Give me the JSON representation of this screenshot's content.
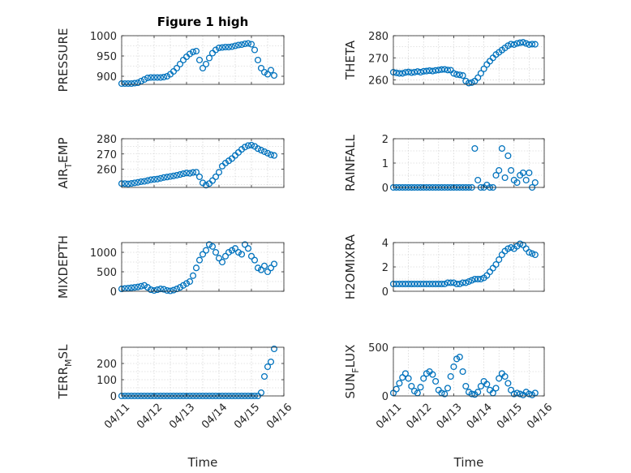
{
  "figure": {
    "title": "Figure 1 high",
    "marker_color": "#0072BD"
  },
  "chart_data": [
    {
      "id": "pressure",
      "type": "scatter",
      "title": "Figure 1 high",
      "ylabel": "PRESSURE",
      "ylabel_sub": [],
      "xlabel": "Time",
      "xlabel_visible": false,
      "xlim": [
        0,
        5
      ],
      "ylim": [
        880,
        1000
      ],
      "yticks": [
        900,
        950,
        1000
      ],
      "xticks": [
        0,
        1,
        2,
        3,
        4,
        5
      ],
      "xtick_labels": [
        "04/11",
        "04/12",
        "04/13",
        "04/14",
        "04/15",
        "04/16"
      ],
      "grid": true,
      "x": [
        0.0,
        0.1,
        0.2,
        0.3,
        0.4,
        0.5,
        0.6,
        0.7,
        0.8,
        0.9,
        1.0,
        1.1,
        1.2,
        1.3,
        1.4,
        1.5,
        1.6,
        1.7,
        1.8,
        1.9,
        2.0,
        2.1,
        2.2,
        2.3,
        2.4,
        2.5,
        2.6,
        2.7,
        2.8,
        2.9,
        3.0,
        3.1,
        3.2,
        3.3,
        3.4,
        3.5,
        3.6,
        3.7,
        3.8,
        3.9,
        4.0,
        4.1,
        4.2,
        4.3,
        4.4,
        4.5,
        4.6,
        4.7
      ],
      "y": [
        882,
        882,
        882,
        882,
        883,
        884,
        888,
        892,
        896,
        897,
        897,
        897,
        897,
        898,
        900,
        905,
        912,
        920,
        930,
        940,
        948,
        955,
        960,
        962,
        940,
        920,
        930,
        945,
        957,
        965,
        970,
        971,
        972,
        972,
        973,
        975,
        977,
        978,
        980,
        981,
        979,
        965,
        940,
        920,
        910,
        905,
        915,
        902
      ]
    },
    {
      "id": "theta",
      "type": "scatter",
      "ylabel": "THETA",
      "ylabel_sub": [],
      "xlabel": "Time",
      "xlabel_visible": false,
      "xlim": [
        0,
        5
      ],
      "ylim": [
        258,
        280
      ],
      "yticks": [
        260,
        270,
        280
      ],
      "xticks": [
        0,
        1,
        2,
        3,
        4,
        5
      ],
      "xtick_labels": [
        "04/11",
        "04/12",
        "04/13",
        "04/14",
        "04/15",
        "04/16"
      ],
      "grid": true,
      "x": [
        0.0,
        0.1,
        0.2,
        0.3,
        0.4,
        0.5,
        0.6,
        0.7,
        0.8,
        0.9,
        1.0,
        1.1,
        1.2,
        1.3,
        1.4,
        1.5,
        1.6,
        1.7,
        1.8,
        1.9,
        2.0,
        2.1,
        2.2,
        2.3,
        2.4,
        2.5,
        2.6,
        2.7,
        2.8,
        2.9,
        3.0,
        3.1,
        3.2,
        3.3,
        3.4,
        3.5,
        3.6,
        3.7,
        3.8,
        3.9,
        4.0,
        4.1,
        4.2,
        4.3,
        4.4,
        4.5,
        4.6,
        4.7
      ],
      "y": [
        263.5,
        263.2,
        263.0,
        263.0,
        263.4,
        263.6,
        263.3,
        263.5,
        263.8,
        263.5,
        263.9,
        264.0,
        264.2,
        264.0,
        264.3,
        264.5,
        264.7,
        264.8,
        264.5,
        264.4,
        263.0,
        262.5,
        262.3,
        262.0,
        259.5,
        258.6,
        258.8,
        259.5,
        261.0,
        263.0,
        265.0,
        267.0,
        268.5,
        270.0,
        271.5,
        272.5,
        273.5,
        274.5,
        275.5,
        276.2,
        276.0,
        276.5,
        276.8,
        277.0,
        276.5,
        276.0,
        276.2,
        276.1
      ]
    },
    {
      "id": "air_temp",
      "type": "scatter",
      "ylabel": "AIR",
      "ylabel_sub": [
        "T",
        "EMP"
      ],
      "xlabel": "Time",
      "xlabel_visible": false,
      "xlim": [
        0,
        5
      ],
      "ylim": [
        248,
        280
      ],
      "yticks": [
        260,
        270,
        280
      ],
      "xticks": [
        0,
        1,
        2,
        3,
        4,
        5
      ],
      "xtick_labels": [
        "04/11",
        "04/12",
        "04/13",
        "04/14",
        "04/15",
        "04/16"
      ],
      "grid": true,
      "x": [
        0.0,
        0.1,
        0.2,
        0.3,
        0.4,
        0.5,
        0.6,
        0.7,
        0.8,
        0.9,
        1.0,
        1.1,
        1.2,
        1.3,
        1.4,
        1.5,
        1.6,
        1.7,
        1.8,
        1.9,
        2.0,
        2.1,
        2.2,
        2.3,
        2.4,
        2.5,
        2.6,
        2.7,
        2.8,
        2.9,
        3.0,
        3.1,
        3.2,
        3.3,
        3.4,
        3.5,
        3.6,
        3.7,
        3.8,
        3.9,
        4.0,
        4.1,
        4.2,
        4.3,
        4.4,
        4.5,
        4.6,
        4.7
      ],
      "y": [
        250.5,
        250.5,
        250.3,
        250.6,
        251.0,
        251.3,
        251.8,
        252.0,
        252.5,
        253.0,
        253.3,
        253.5,
        254.0,
        254.5,
        254.8,
        255.2,
        255.6,
        256.0,
        256.5,
        257.0,
        257.5,
        257.3,
        257.8,
        258.0,
        255.0,
        251.0,
        249.5,
        250.5,
        252.5,
        255.0,
        258.0,
        262.0,
        264.0,
        265.5,
        267.0,
        269.0,
        271.0,
        273.0,
        274.5,
        275.5,
        275.8,
        275.0,
        273.5,
        272.5,
        271.5,
        270.5,
        269.5,
        269.0
      ]
    },
    {
      "id": "rainfall",
      "type": "scatter",
      "ylabel": "RAINFALL",
      "ylabel_sub": [],
      "xlabel": "Time",
      "xlabel_visible": false,
      "xlim": [
        0,
        5
      ],
      "ylim": [
        0,
        2
      ],
      "yticks": [
        0,
        1,
        2
      ],
      "xticks": [
        0,
        1,
        2,
        3,
        4,
        5
      ],
      "xtick_labels": [
        "04/11",
        "04/12",
        "04/13",
        "04/14",
        "04/15",
        "04/16"
      ],
      "grid": true,
      "x": [
        0.0,
        0.1,
        0.2,
        0.3,
        0.4,
        0.5,
        0.6,
        0.7,
        0.8,
        0.9,
        1.0,
        1.1,
        1.2,
        1.3,
        1.4,
        1.5,
        1.6,
        1.7,
        1.8,
        1.9,
        2.0,
        2.1,
        2.2,
        2.3,
        2.4,
        2.5,
        2.6,
        2.7,
        2.8,
        2.9,
        3.0,
        3.1,
        3.2,
        3.3,
        3.4,
        3.5,
        3.6,
        3.7,
        3.8,
        3.9,
        4.0,
        4.1,
        4.2,
        4.3,
        4.4,
        4.5,
        4.6,
        4.7
      ],
      "y": [
        0,
        0,
        0,
        0,
        0,
        0,
        0,
        0,
        0,
        0,
        0,
        0,
        0,
        0,
        0,
        0,
        0,
        0,
        0,
        0,
        0,
        0,
        0,
        0,
        0,
        0,
        0,
        1.6,
        0.3,
        0,
        0,
        0.1,
        0,
        0,
        0.5,
        0.7,
        1.6,
        0.4,
        1.3,
        0.7,
        0.3,
        0.2,
        0.5,
        0.6,
        0.3,
        0.6,
        0,
        0.2
      ]
    },
    {
      "id": "mixdepth",
      "type": "scatter",
      "ylabel": "MIXDEPTH",
      "ylabel_sub": [],
      "xlabel": "Time",
      "xlabel_visible": false,
      "xlim": [
        0,
        5
      ],
      "ylim": [
        0,
        1250
      ],
      "yticks": [
        0,
        500,
        1000
      ],
      "xticks": [
        0,
        1,
        2,
        3,
        4,
        5
      ],
      "xtick_labels": [
        "04/11",
        "04/12",
        "04/13",
        "04/14",
        "04/15",
        "04/16"
      ],
      "grid": true,
      "x": [
        0.0,
        0.1,
        0.2,
        0.3,
        0.4,
        0.5,
        0.6,
        0.7,
        0.8,
        0.9,
        1.0,
        1.1,
        1.2,
        1.3,
        1.4,
        1.5,
        1.6,
        1.7,
        1.8,
        1.9,
        2.0,
        2.1,
        2.2,
        2.3,
        2.4,
        2.5,
        2.6,
        2.7,
        2.8,
        2.9,
        3.0,
        3.1,
        3.2,
        3.3,
        3.4,
        3.5,
        3.6,
        3.7,
        3.8,
        3.9,
        4.0,
        4.1,
        4.2,
        4.3,
        4.4,
        4.5,
        4.6,
        4.7
      ],
      "y": [
        60,
        70,
        80,
        90,
        100,
        110,
        130,
        150,
        100,
        40,
        20,
        40,
        60,
        50,
        20,
        10,
        30,
        60,
        100,
        150,
        200,
        250,
        400,
        600,
        800,
        950,
        1050,
        1200,
        1150,
        1000,
        850,
        750,
        900,
        1000,
        1050,
        1100,
        1000,
        950,
        1200,
        1100,
        900,
        800,
        600,
        550,
        650,
        500,
        600,
        700
      ]
    },
    {
      "id": "h2omixra",
      "type": "scatter",
      "ylabel": "H2OMIXRA",
      "ylabel_sub": [],
      "xlabel": "Time",
      "xlabel_visible": false,
      "xlim": [
        0,
        5
      ],
      "ylim": [
        0,
        4
      ],
      "yticks": [
        0,
        2,
        4
      ],
      "xticks": [
        0,
        1,
        2,
        3,
        4,
        5
      ],
      "xtick_labels": [
        "04/11",
        "04/12",
        "04/13",
        "04/14",
        "04/15",
        "04/16"
      ],
      "grid": true,
      "x": [
        0.0,
        0.1,
        0.2,
        0.3,
        0.4,
        0.5,
        0.6,
        0.7,
        0.8,
        0.9,
        1.0,
        1.1,
        1.2,
        1.3,
        1.4,
        1.5,
        1.6,
        1.7,
        1.8,
        1.9,
        2.0,
        2.1,
        2.2,
        2.3,
        2.4,
        2.5,
        2.6,
        2.7,
        2.8,
        2.9,
        3.0,
        3.1,
        3.2,
        3.3,
        3.4,
        3.5,
        3.6,
        3.7,
        3.8,
        3.9,
        4.0,
        4.1,
        4.2,
        4.3,
        4.4,
        4.5,
        4.6,
        4.7
      ],
      "y": [
        0.6,
        0.6,
        0.6,
        0.6,
        0.6,
        0.6,
        0.6,
        0.6,
        0.6,
        0.6,
        0.6,
        0.6,
        0.6,
        0.6,
        0.6,
        0.6,
        0.6,
        0.6,
        0.7,
        0.7,
        0.7,
        0.6,
        0.6,
        0.7,
        0.7,
        0.8,
        0.9,
        1.0,
        1.0,
        1.0,
        1.1,
        1.3,
        1.6,
        1.9,
        2.2,
        2.6,
        3.0,
        3.3,
        3.5,
        3.6,
        3.5,
        3.7,
        3.9,
        3.8,
        3.5,
        3.2,
        3.1,
        3.0
      ]
    },
    {
      "id": "terr_msl",
      "type": "scatter",
      "ylabel": "TERR",
      "ylabel_sub": [
        "M",
        "SL"
      ],
      "xlabel": "Time",
      "xlabel_visible": true,
      "xlim": [
        0,
        5
      ],
      "ylim": [
        0,
        300
      ],
      "yticks": [
        0,
        100,
        200
      ],
      "xticks": [
        0,
        1,
        2,
        3,
        4,
        5
      ],
      "xtick_labels": [
        "04/11",
        "04/12",
        "04/13",
        "04/14",
        "04/15",
        "04/16"
      ],
      "grid": true,
      "x": [
        0.0,
        0.1,
        0.2,
        0.3,
        0.4,
        0.5,
        0.6,
        0.7,
        0.8,
        0.9,
        1.0,
        1.1,
        1.2,
        1.3,
        1.4,
        1.5,
        1.6,
        1.7,
        1.8,
        1.9,
        2.0,
        2.1,
        2.2,
        2.3,
        2.4,
        2.5,
        2.6,
        2.7,
        2.8,
        2.9,
        3.0,
        3.1,
        3.2,
        3.3,
        3.4,
        3.5,
        3.6,
        3.7,
        3.8,
        3.9,
        4.0,
        4.1,
        4.2,
        4.3,
        4.4,
        4.5,
        4.6,
        4.7
      ],
      "y": [
        0,
        0,
        0,
        0,
        0,
        0,
        0,
        0,
        0,
        0,
        0,
        0,
        0,
        0,
        0,
        0,
        0,
        0,
        0,
        0,
        0,
        0,
        0,
        0,
        0,
        0,
        0,
        0,
        0,
        0,
        0,
        0,
        0,
        0,
        0,
        0,
        0,
        0,
        0,
        0,
        0,
        0,
        0,
        20,
        120,
        180,
        210,
        290
      ]
    },
    {
      "id": "sun_flux",
      "type": "scatter",
      "ylabel": "SUN",
      "ylabel_sub": [
        "F",
        "LUX"
      ],
      "xlabel": "Time",
      "xlabel_visible": true,
      "xlim": [
        0,
        5
      ],
      "ylim": [
        0,
        500
      ],
      "yticks": [
        0,
        500
      ],
      "xticks": [
        0,
        1,
        2,
        3,
        4,
        5
      ],
      "xtick_labels": [
        "04/11",
        "04/12",
        "04/13",
        "04/14",
        "04/15",
        "04/16"
      ],
      "grid": true,
      "x": [
        0.0,
        0.1,
        0.2,
        0.3,
        0.4,
        0.5,
        0.6,
        0.7,
        0.8,
        0.9,
        1.0,
        1.1,
        1.2,
        1.3,
        1.4,
        1.5,
        1.6,
        1.7,
        1.8,
        1.9,
        2.0,
        2.1,
        2.2,
        2.3,
        2.4,
        2.5,
        2.6,
        2.7,
        2.8,
        2.9,
        3.0,
        3.1,
        3.2,
        3.3,
        3.4,
        3.5,
        3.6,
        3.7,
        3.8,
        3.9,
        4.0,
        4.1,
        4.2,
        4.3,
        4.4,
        4.5,
        4.6,
        4.7
      ],
      "y": [
        30,
        70,
        130,
        190,
        230,
        180,
        100,
        50,
        30,
        90,
        180,
        230,
        250,
        220,
        150,
        60,
        30,
        20,
        80,
        200,
        300,
        380,
        400,
        250,
        100,
        40,
        20,
        15,
        40,
        100,
        150,
        120,
        60,
        30,
        80,
        180,
        230,
        200,
        130,
        60,
        20,
        30,
        20,
        10,
        40,
        20,
        10,
        30
      ]
    }
  ]
}
